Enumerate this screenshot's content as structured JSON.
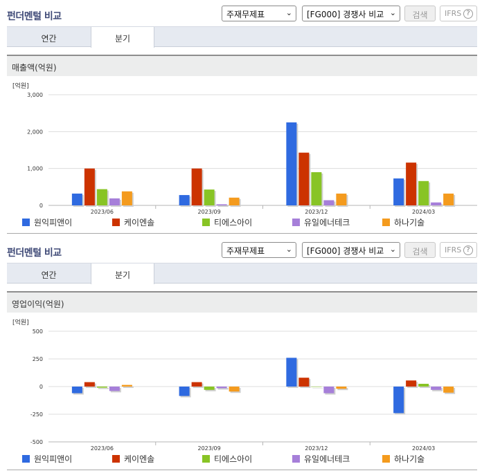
{
  "header": {
    "title": "펀더멘털 비교",
    "select_statement": "주재무제표",
    "select_compare": "[FG000] 경쟁사 비교",
    "search_label": "검색",
    "ifrs_label": "IFRS",
    "help_symbol": "?"
  },
  "tabs": [
    {
      "label": "연간",
      "active": false
    },
    {
      "label": "분기",
      "active": true
    }
  ],
  "colors": {
    "series": [
      "#2f6ae0",
      "#cc3300",
      "#88c425",
      "#a67fd9",
      "#f49b1e"
    ],
    "title": "#3f4a77"
  },
  "sections": [
    {
      "subtitle": "매출액(억원)",
      "unit": "[억원]"
    },
    {
      "subtitle": "영업이익(억원)",
      "unit": "[억원]"
    }
  ],
  "chart_data": [
    {
      "type": "bar",
      "title": "매출액(억원)",
      "ylabel": "[억원]",
      "categories": [
        "2023/06",
        "2023/09",
        "2023/12",
        "2024/03"
      ],
      "ylim": [
        0,
        3000
      ],
      "yticks": [
        0,
        1000,
        2000,
        3000
      ],
      "ytick_labels": [
        "0",
        "1,000",
        "2,000",
        "3,000"
      ],
      "grid": true,
      "legend": "bottom",
      "series": [
        {
          "name": "원익피앤이",
          "values": [
            320,
            280,
            2250,
            730
          ]
        },
        {
          "name": "케이엔솔",
          "values": [
            1000,
            1000,
            1430,
            1160
          ]
        },
        {
          "name": "티에스아이",
          "values": [
            440,
            430,
            900,
            660
          ]
        },
        {
          "name": "유일에너테크",
          "values": [
            190,
            30,
            140,
            80
          ]
        },
        {
          "name": "하나기술",
          "values": [
            380,
            210,
            320,
            320
          ]
        }
      ]
    },
    {
      "type": "bar",
      "title": "영업이익(억원)",
      "ylabel": "[억원]",
      "categories": [
        "2023/06",
        "2023/09",
        "2023/12",
        "2024/03"
      ],
      "ylim": [
        -500,
        500
      ],
      "yticks": [
        -500,
        -250,
        0,
        250,
        500
      ],
      "ytick_labels": [
        "-500",
        "-250",
        "0",
        "250",
        "500"
      ],
      "grid": true,
      "legend": "bottom",
      "series": [
        {
          "name": "원익피앤이",
          "values": [
            -60,
            -85,
            260,
            -240
          ]
        },
        {
          "name": "케이엔솔",
          "values": [
            40,
            40,
            80,
            55
          ]
        },
        {
          "name": "티에스아이",
          "values": [
            -10,
            -30,
            0,
            25
          ]
        },
        {
          "name": "유일에너테크",
          "values": [
            -40,
            -15,
            -60,
            -30
          ]
        },
        {
          "name": "하나기술",
          "values": [
            15,
            -45,
            -20,
            -55
          ]
        }
      ]
    }
  ]
}
